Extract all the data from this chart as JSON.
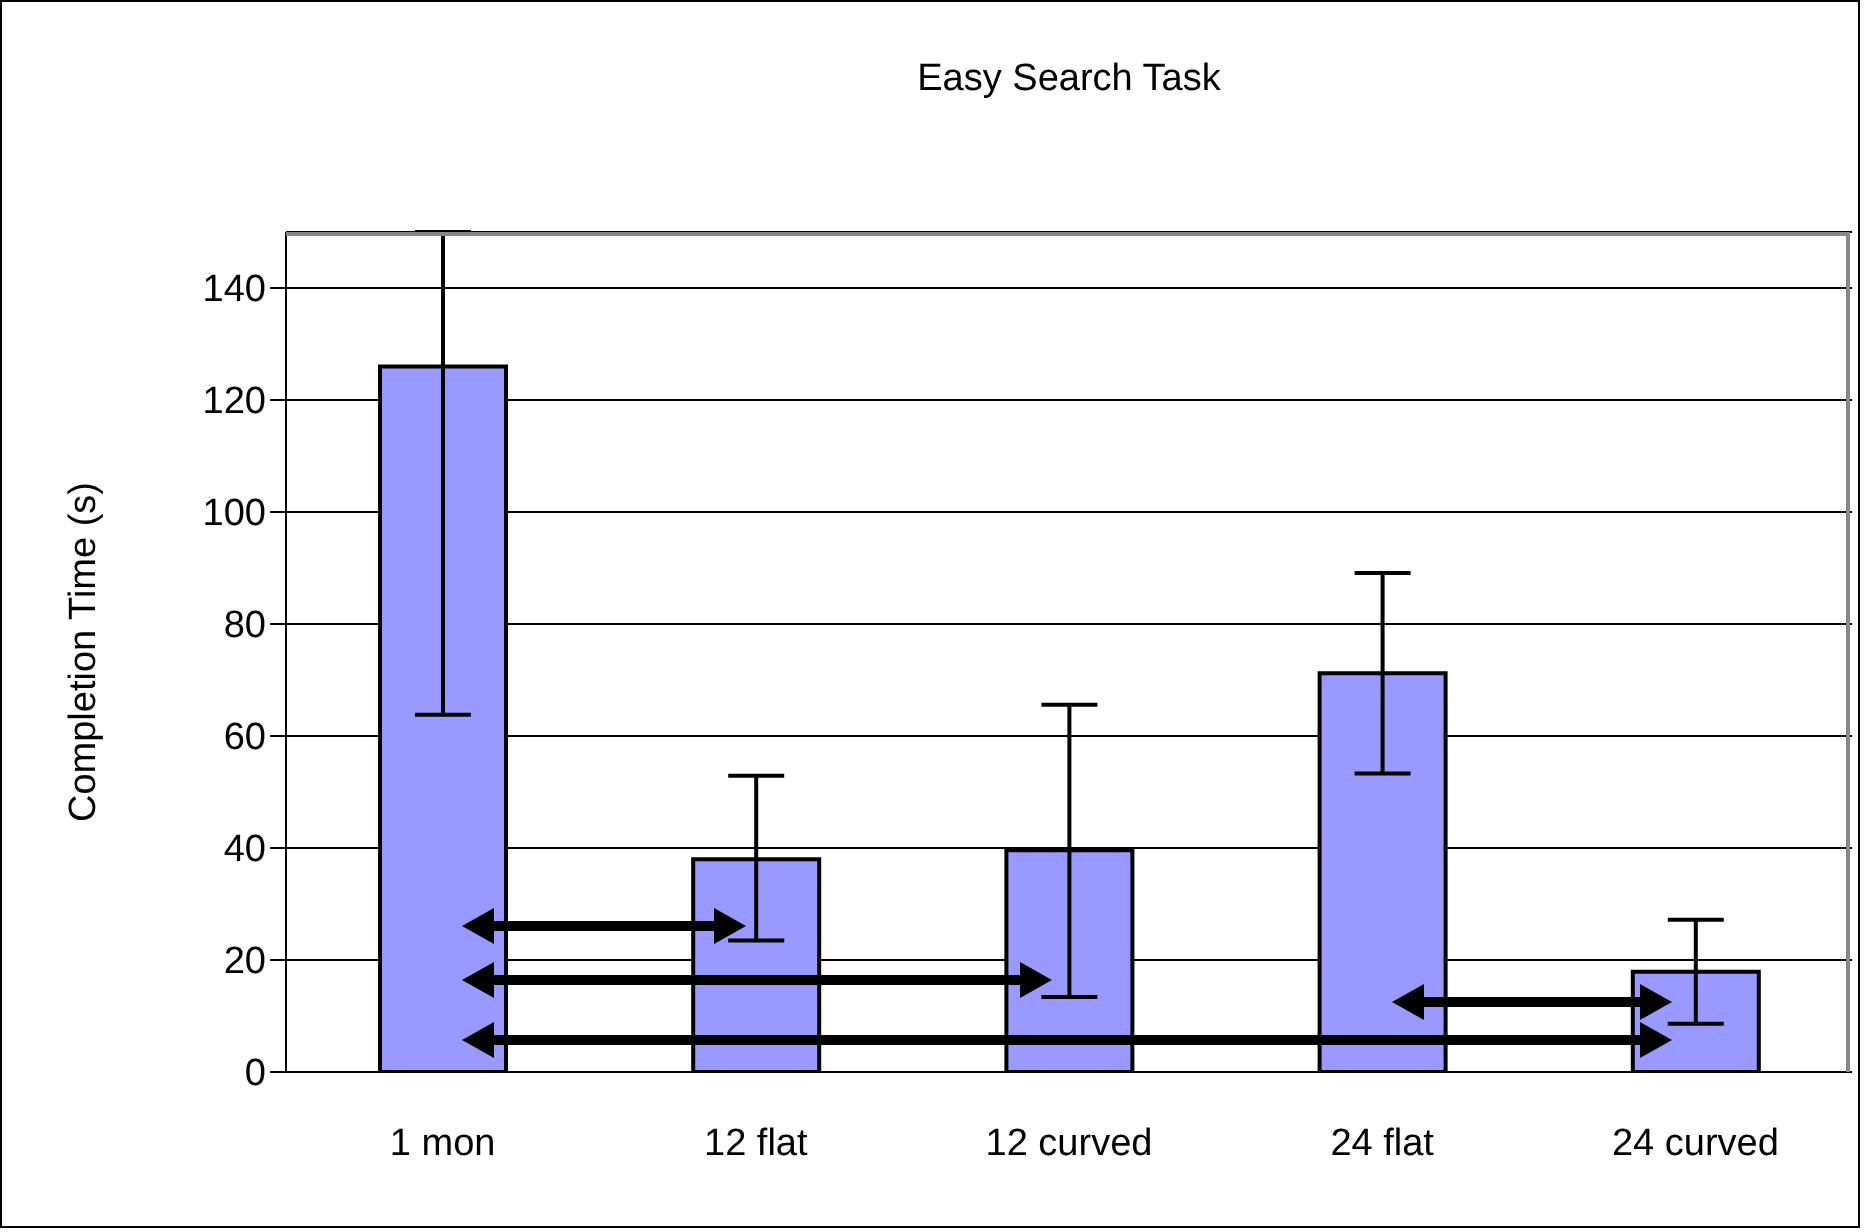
{
  "chart_data": {
    "type": "bar",
    "title": "Easy Search Task",
    "ylabel": "Completion Time (s)",
    "categories": [
      "1 mon",
      "12 flat",
      "12 curved",
      "24 flat",
      "24 curved"
    ],
    "values": [
      126,
      38,
      39.6,
      71.2,
      17.9
    ],
    "errors": [
      [
        63.8,
        150
      ],
      [
        23.5,
        52.9
      ],
      [
        13.4,
        65.6
      ],
      [
        53.3,
        89.1
      ],
      [
        8.6,
        27.2
      ]
    ],
    "color": "#9999ff",
    "ylim": [
      0,
      150
    ],
    "yticks": [
      0,
      20,
      40,
      60,
      80,
      100,
      120,
      140
    ],
    "grid": "y"
  }
}
